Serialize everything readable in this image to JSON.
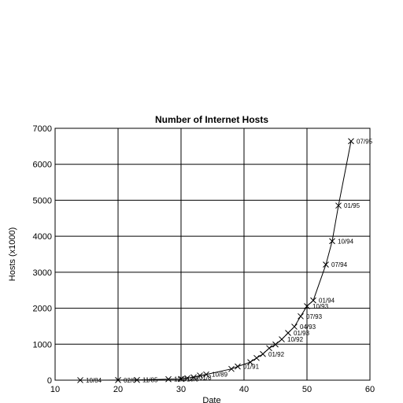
{
  "chart_data": {
    "type": "line",
    "title": "Number of Internet Hosts",
    "xlabel": "Date",
    "ylabel": "Hosts (x1000)",
    "xlim": [
      10,
      60
    ],
    "ylim": [
      0,
      7000
    ],
    "grid": true,
    "xticks": [
      10,
      20,
      30,
      40,
      50,
      60
    ],
    "yticks": [
      0,
      1000,
      2000,
      3000,
      4000,
      5000,
      6000,
      7000
    ],
    "series": [
      {
        "marker": "x",
        "x": [
          14,
          20,
          23,
          28,
          30,
          31,
          32,
          33,
          34,
          38,
          39,
          41,
          42,
          43,
          44,
          45,
          46,
          47,
          48,
          49,
          50,
          51,
          53,
          54,
          55,
          57
        ],
        "y": [
          1,
          2,
          6,
          28,
          33,
          56,
          80,
          130,
          160,
          313,
          380,
          500,
          617,
          727,
          890,
          992,
          1136,
          1313,
          1486,
          1776,
          2056,
          2217,
          3212,
          3864,
          4852,
          6642
        ]
      }
    ],
    "annotations": [
      {
        "text": "10/84",
        "x": 14,
        "y": 1
      },
      {
        "text": "02/8",
        "x": 20,
        "y": 2
      },
      {
        "text": "11/85",
        "x": 23,
        "y": 6
      },
      {
        "text": "12/8",
        "x": 28,
        "y": 28
      },
      {
        "text": "10/8",
        "x": 30,
        "y": 33
      },
      {
        "text": "01/8",
        "x": 32,
        "y": 80
      },
      {
        "text": "10/89",
        "x": 34,
        "y": 160
      },
      {
        "text": "01/91",
        "x": 39,
        "y": 380
      },
      {
        "text": "01/92",
        "x": 43,
        "y": 727
      },
      {
        "text": "10/92",
        "x": 46,
        "y": 1136
      },
      {
        "text": "01/93",
        "x": 47,
        "y": 1313
      },
      {
        "text": "04/93",
        "x": 48,
        "y": 1486
      },
      {
        "text": "07/93",
        "x": 49,
        "y": 1776
      },
      {
        "text": "10/93",
        "x": 50,
        "y": 2056
      },
      {
        "text": "01/94",
        "x": 51,
        "y": 2217
      },
      {
        "text": "07/94",
        "x": 53,
        "y": 3212
      },
      {
        "text": "10/94",
        "x": 54,
        "y": 3864
      },
      {
        "text": "01/95",
        "x": 55,
        "y": 4852
      },
      {
        "text": "07/95",
        "x": 57,
        "y": 6642
      }
    ]
  }
}
